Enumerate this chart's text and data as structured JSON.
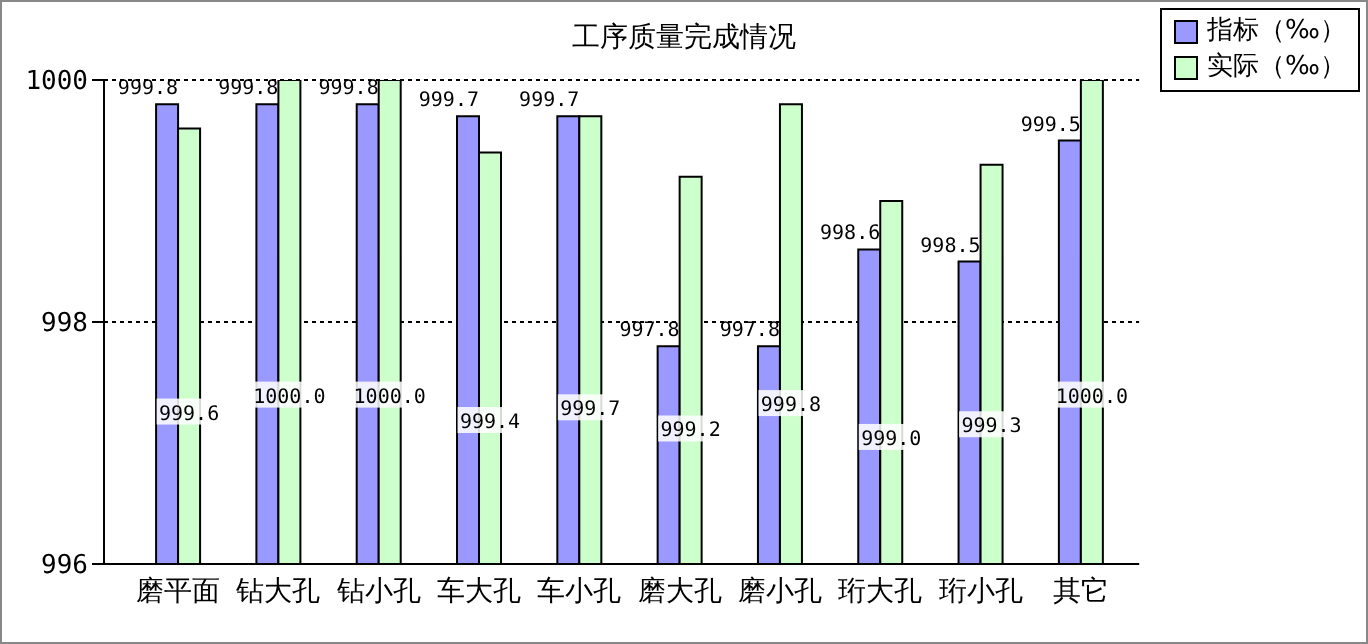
{
  "chart_data": {
    "type": "bar",
    "title": "工序质量完成情况",
    "categories": [
      "磨平面",
      "钻大孔",
      "钻小孔",
      "车大孔",
      "车小孔",
      "磨大孔",
      "磨小孔",
      "珩大孔",
      "珩小孔",
      "其它"
    ],
    "series": [
      {
        "name": "指标（‰）",
        "color": "#9999ff",
        "values": [
          999.8,
          999.8,
          999.8,
          999.7,
          999.7,
          997.8,
          997.8,
          998.6,
          998.5,
          999.5
        ],
        "value_labels": [
          "999.8",
          "999.8",
          "999.8",
          "999.7",
          "999.7",
          "997.8",
          "997.8",
          "998.6",
          "998.5",
          "999.5"
        ]
      },
      {
        "name": "实际（‰）",
        "color": "#ccffcc",
        "values": [
          999.6,
          1000,
          1000,
          999.4,
          999.7,
          999.2,
          999.8,
          999.0,
          999.3,
          1000
        ],
        "value_labels": [
          "999.6",
          "1000.0",
          "1000.0",
          "999.4",
          "999.7",
          "999.2",
          "999.8",
          "999.0",
          "999.3",
          "1000.0"
        ]
      }
    ],
    "ylim": [
      996,
      1000
    ],
    "yticks": [
      996,
      998,
      1000
    ],
    "grid": "y",
    "legend": "top right"
  }
}
